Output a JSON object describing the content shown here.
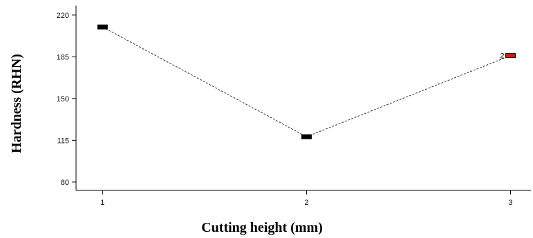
{
  "chart_data": {
    "type": "line",
    "title": "",
    "xlabel": "Cutting height (mm)",
    "ylabel": "Hardness (RHN)",
    "x": [
      1,
      2,
      3
    ],
    "x_ticks": [
      "1",
      "2",
      "3"
    ],
    "y_ticks": [
      "80",
      "115",
      "150",
      "185",
      "220"
    ],
    "xlim": [
      0.87,
      3.1
    ],
    "ylim": [
      73,
      228
    ],
    "series": [
      {
        "values": [
          210,
          118,
          186
        ],
        "marker_colors": [
          "#000000",
          "#000000",
          "#e01010"
        ],
        "point_labels": [
          "",
          "",
          "2"
        ],
        "line_style": "dashed"
      }
    ],
    "grid": false,
    "legend": "none"
  }
}
